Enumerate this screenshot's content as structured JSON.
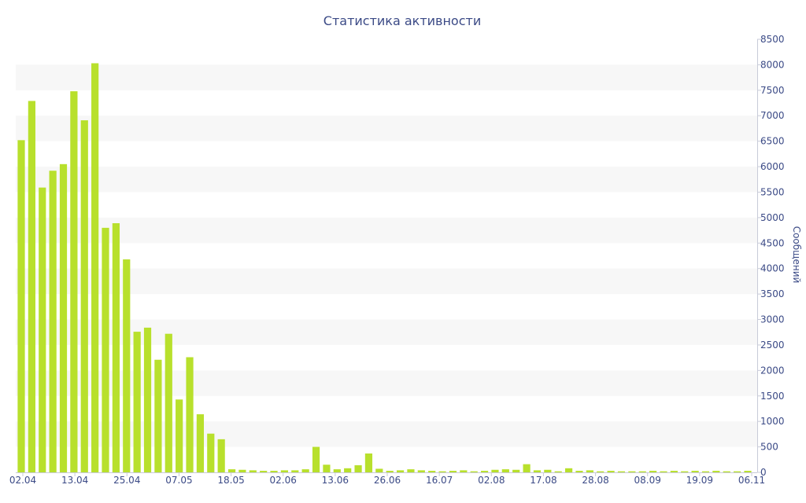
{
  "chart_data": {
    "type": "bar",
    "title": "Статистика активности",
    "ylabel": "Сообщений",
    "ylim": [
      0,
      8500
    ],
    "y_ticks": [
      0,
      500,
      1000,
      1500,
      2000,
      2500,
      3000,
      3500,
      4000,
      4500,
      5000,
      5500,
      6000,
      6500,
      7000,
      7500,
      8000,
      8500
    ],
    "y_axis_position": "right",
    "grid": "alternating horizontal bands",
    "x_tick_labels": [
      "02.04",
      "13.04",
      "25.04",
      "07.05",
      "18.05",
      "02.06",
      "13.06",
      "26.06",
      "16.07",
      "02.08",
      "17.08",
      "28.08",
      "08.09",
      "19.09",
      "06.11"
    ],
    "values": [
      6520,
      7290,
      5590,
      5920,
      6050,
      7480,
      6910,
      8030,
      4800,
      4890,
      4180,
      2760,
      2840,
      2210,
      2720,
      1430,
      2260,
      1140,
      760,
      650,
      60,
      50,
      40,
      30,
      30,
      40,
      40,
      60,
      500,
      150,
      60,
      80,
      140,
      370,
      70,
      30,
      40,
      60,
      40,
      30,
      20,
      30,
      40,
      20,
      30,
      50,
      60,
      50,
      160,
      40,
      50,
      20,
      80,
      30,
      40,
      20,
      30,
      20,
      20,
      20,
      30,
      20,
      30,
      20,
      30,
      20,
      30,
      20,
      20,
      30
    ],
    "bar_color": "#b8e02c",
    "band_color": "#f7f7f7",
    "text_color": "#3b4a86"
  }
}
